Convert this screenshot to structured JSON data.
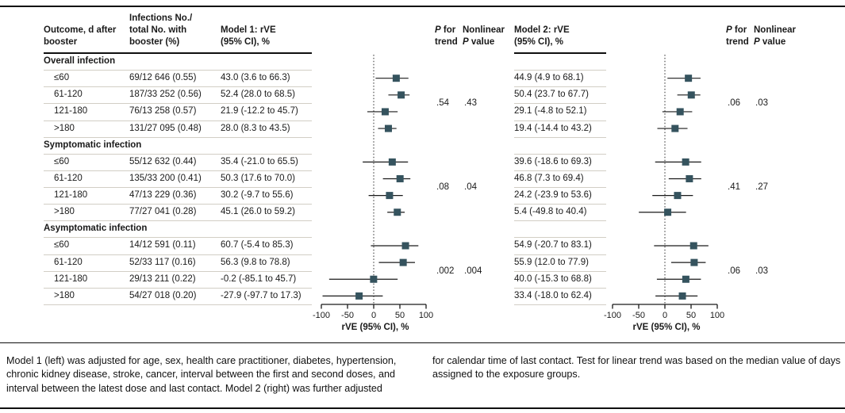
{
  "colors": {
    "marker": "#35535e",
    "text": "#1a1a1a",
    "separator": "#d2cec5",
    "rule": "#0f0f0f"
  },
  "header": {
    "outcome": [
      "Outcome, d after",
      "booster"
    ],
    "infections": [
      "Infections No./",
      "total No. with",
      "booster (%)"
    ],
    "model1": [
      "Model 1: rVE",
      "(95% CI), %"
    ],
    "p_trend": [
      "P for",
      "trend"
    ],
    "nonlinear": [
      "Nonlinear",
      "P value"
    ],
    "model2": [
      "Model 2: rVE",
      "(95% CI), %"
    ]
  },
  "groups": [
    {
      "name": "Overall infection",
      "model1_p_trend": ".54",
      "model1_p_nonlinear": ".43",
      "model2_p_trend": ".06",
      "model2_p_nonlinear": ".03",
      "rows": [
        {
          "label": "≤60",
          "infections": "69/12 646 (0.55)",
          "model1": "43.0 (3.6 to 66.3)",
          "model2": "44.9 (4.9 to 68.1)"
        },
        {
          "label": "61-120",
          "infections": "187/33 252 (0.56)",
          "model1": "52.4 (28.0 to 68.5)",
          "model2": "50.4 (23.7 to 67.7)"
        },
        {
          "label": "121-180",
          "infections": "76/13 258 (0.57)",
          "model1": "21.9 (-12.2 to 45.7)",
          "model2": "29.1 (-4.8 to 52.1)"
        },
        {
          "label": ">180",
          "infections": "131/27 095 (0.48)",
          "model1": "28.0 (8.3 to 43.5)",
          "model2": "19.4 (-14.4 to 43.2)"
        }
      ]
    },
    {
      "name": "Symptomatic infection",
      "model1_p_trend": ".08",
      "model1_p_nonlinear": ".04",
      "model2_p_trend": ".41",
      "model2_p_nonlinear": ".27",
      "rows": [
        {
          "label": "≤60",
          "infections": "55/12 632 (0.44)",
          "model1": "35.4 (-21.0 to 65.5)",
          "model2": "39.6 (-18.6 to 69.3)"
        },
        {
          "label": "61-120",
          "infections": "135/33 200 (0.41)",
          "model1": "50.3 (17.6 to 70.0)",
          "model2": "46.8 (7.3 to 69.4)"
        },
        {
          "label": "121-180",
          "infections": "47/13 229 (0.36)",
          "model1": "30.2 (-9.7 to 55.6)",
          "model2": "24.2 (-23.9 to 53.6)"
        },
        {
          "label": ">180",
          "infections": "77/27 041 (0.28)",
          "model1": "45.1 (26.0 to 59.2)",
          "model2": "5.4 (-49.8 to 40.4)"
        }
      ]
    },
    {
      "name": "Asymptomatic infection",
      "model1_p_trend": ".002",
      "model1_p_nonlinear": ".004",
      "model2_p_trend": ".06",
      "model2_p_nonlinear": ".03",
      "rows": [
        {
          "label": "≤60",
          "infections": "14/12 591 (0.11)",
          "model1": "60.7 (-5.4 to 85.3)",
          "model2": "54.9 (-20.7 to 83.1)"
        },
        {
          "label": "61-120",
          "infections": "52/33 117 (0.16)",
          "model1": "56.3 (9.8 to 78.8)",
          "model2": "55.9 (12.0 to 77.9)"
        },
        {
          "label": "121-180",
          "infections": "29/13 211 (0.22)",
          "model1": "-0.2 (-85.1 to 45.7)",
          "model2": "40.0 (-15.3 to 68.8)"
        },
        {
          "label": ">180",
          "infections": "54/27 018 (0.20)",
          "model1": "-27.9 (-97.7 to 17.3)",
          "model2": "33.4 (-18.0 to 62.4)"
        }
      ]
    }
  ],
  "chart_data": [
    {
      "type": "scatter",
      "subtype": "forest",
      "name": "Model 1",
      "xlabel": "rVE (95% CI), %",
      "xlim": [
        -100,
        100
      ],
      "xticks": [
        -100,
        -50,
        0,
        50,
        100
      ],
      "reference_line": 0,
      "categories": [
        "Overall ≤60",
        "Overall 61-120",
        "Overall 121-180",
        "Overall >180",
        "Symptomatic ≤60",
        "Symptomatic 61-120",
        "Symptomatic 121-180",
        "Symptomatic >180",
        "Asymptomatic ≤60",
        "Asymptomatic 61-120",
        "Asymptomatic 121-180",
        "Asymptomatic >180"
      ],
      "estimates": [
        43.0,
        52.4,
        21.9,
        28.0,
        35.4,
        50.3,
        30.2,
        45.1,
        60.7,
        56.3,
        -0.2,
        -27.9
      ],
      "ci_low": [
        3.6,
        28.0,
        -12.2,
        8.3,
        -21.0,
        17.6,
        -9.7,
        26.0,
        -5.4,
        9.8,
        -85.1,
        -97.7
      ],
      "ci_high": [
        66.3,
        68.5,
        45.7,
        43.5,
        65.5,
        70.0,
        55.6,
        59.2,
        85.3,
        78.8,
        45.7,
        17.3
      ]
    },
    {
      "type": "scatter",
      "subtype": "forest",
      "name": "Model 2",
      "xlabel": "rVE (95% CI), %",
      "xlim": [
        -100,
        100
      ],
      "xticks": [
        -100,
        -50,
        0,
        50,
        100
      ],
      "reference_line": 0,
      "categories": [
        "Overall ≤60",
        "Overall 61-120",
        "Overall 121-180",
        "Overall >180",
        "Symptomatic ≤60",
        "Symptomatic 61-120",
        "Symptomatic 121-180",
        "Symptomatic >180",
        "Asymptomatic ≤60",
        "Asymptomatic 61-120",
        "Asymptomatic 121-180",
        "Asymptomatic >180"
      ],
      "estimates": [
        44.9,
        50.4,
        29.1,
        19.4,
        39.6,
        46.8,
        24.2,
        5.4,
        54.9,
        55.9,
        40.0,
        33.4
      ],
      "ci_low": [
        4.9,
        23.7,
        -4.8,
        -14.4,
        -18.6,
        7.3,
        -23.9,
        -49.8,
        -20.7,
        12.0,
        -15.3,
        -18.0
      ],
      "ci_high": [
        68.1,
        67.7,
        52.1,
        43.2,
        69.3,
        69.4,
        53.6,
        40.4,
        83.1,
        77.9,
        68.8,
        62.4
      ]
    }
  ],
  "footnote": {
    "left": "Model 1 (left) was adjusted for age, sex, health care practitioner, diabetes, hypertension, chronic kidney disease, stroke, cancer, interval between the first and second doses, and interval between the latest dose and last contact. Model 2 (right) was further adjusted",
    "right": "for calendar time of last contact. Test for linear trend was based on the median value of days assigned to the exposure groups."
  }
}
